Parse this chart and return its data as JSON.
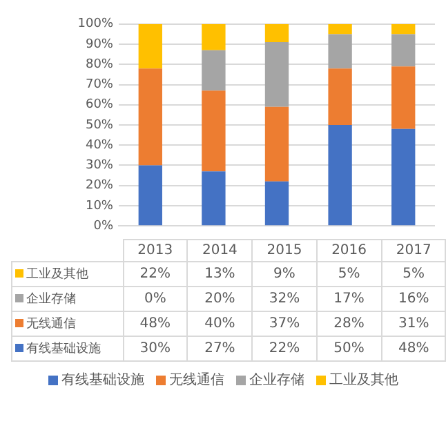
{
  "chart_data": {
    "type": "bar",
    "stacked": true,
    "categories": [
      "2013",
      "2014",
      "2015",
      "2016",
      "2017"
    ],
    "series": [
      {
        "name": "有线基础设施",
        "color": "#4472c4",
        "values": [
          30,
          27,
          22,
          50,
          48
        ],
        "value_labels": [
          "30%",
          "27%",
          "22%",
          "50%",
          "48%"
        ]
      },
      {
        "name": "无线通信",
        "color": "#ed7d31",
        "values": [
          48,
          40,
          37,
          28,
          31
        ],
        "value_labels": [
          "48%",
          "40%",
          "37%",
          "28%",
          "31%"
        ]
      },
      {
        "name": "企业存储",
        "color": "#a5a5a5",
        "values": [
          0,
          20,
          32,
          17,
          16
        ],
        "value_labels": [
          "0%",
          "20%",
          "32%",
          "17%",
          "16%"
        ]
      },
      {
        "name": "工业及其他",
        "color": "#ffc000",
        "values": [
          22,
          13,
          9,
          5,
          5
        ],
        "value_labels": [
          "22%",
          "13%",
          "9%",
          "5%",
          "5%"
        ]
      }
    ],
    "ylim": [
      0,
      100
    ],
    "yticks": [
      {
        "value": 0,
        "label": "0%"
      },
      {
        "value": 10,
        "label": "10%"
      },
      {
        "value": 20,
        "label": "20%"
      },
      {
        "value": 30,
        "label": "30%"
      },
      {
        "value": 40,
        "label": "40%"
      },
      {
        "value": 50,
        "label": "50%"
      },
      {
        "value": 60,
        "label": "60%"
      },
      {
        "value": 70,
        "label": "70%"
      },
      {
        "value": 80,
        "label": "80%"
      },
      {
        "value": 90,
        "label": "90%"
      },
      {
        "value": 100,
        "label": "100%"
      }
    ],
    "grid": "y",
    "legend": "bottom"
  }
}
